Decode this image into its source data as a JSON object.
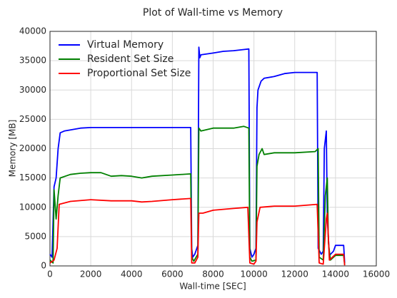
{
  "chart_data": {
    "type": "line",
    "title": "Plot of Wall-time vs Memory",
    "xlabel": "Wall-time [SEC]",
    "ylabel": "Memory [MB]",
    "xlim": [
      0,
      16000
    ],
    "xticks": [
      0,
      2000,
      4000,
      6000,
      8000,
      10000,
      12000,
      14000,
      16000
    ],
    "ylim": [
      0,
      40000
    ],
    "yticks": [
      0,
      5000,
      10000,
      15000,
      20000,
      25000,
      30000,
      35000,
      40000
    ],
    "grid": true,
    "legend": "upper left",
    "series": [
      {
        "name": "Virtual Memory",
        "color": "#0000ff",
        "x": [
          0,
          100,
          200,
          300,
          400,
          500,
          700,
          1000,
          1500,
          2000,
          3000,
          4000,
          5000,
          6000,
          6900,
          6950,
          7000,
          7100,
          7250,
          7300,
          7350,
          7400,
          8000,
          8500,
          9000,
          9500,
          9750,
          9800,
          9900,
          10000,
          10100,
          10150,
          10200,
          10350,
          10500,
          11000,
          11500,
          12000,
          12500,
          13100,
          13150,
          13300,
          13400,
          13450,
          13550,
          13600,
          13700,
          13900,
          14000,
          14400,
          14450
        ],
        "values": [
          2000,
          1500,
          13500,
          15000,
          20000,
          22700,
          23000,
          23200,
          23500,
          23600,
          23600,
          23600,
          23600,
          23600,
          23600,
          3000,
          1500,
          2000,
          3500,
          37300,
          35500,
          36000,
          36300,
          36600,
          36700,
          36900,
          37000,
          3000,
          1500,
          2000,
          3000,
          27000,
          30000,
          31500,
          32000,
          32300,
          32800,
          33000,
          33000,
          33000,
          3000,
          2000,
          2500,
          20000,
          23000,
          8000,
          1800,
          2500,
          3500,
          3500,
          500
        ]
      },
      {
        "name": "Resident Set Size",
        "color": "#008000",
        "x": [
          0,
          150,
          200,
          300,
          400,
          500,
          1000,
          1500,
          2000,
          2500,
          3000,
          3500,
          4000,
          4500,
          5000,
          6000,
          6900,
          6950,
          7050,
          7250,
          7300,
          7400,
          8000,
          8500,
          9000,
          9500,
          9750,
          9800,
          9900,
          10100,
          10150,
          10250,
          10400,
          10500,
          11000,
          12000,
          13000,
          13150,
          13200,
          13400,
          13500,
          13600,
          13650,
          13750,
          14000,
          14400,
          14450
        ],
        "values": [
          1000,
          500,
          13000,
          8000,
          12000,
          15000,
          15600,
          15800,
          15900,
          15900,
          15300,
          15400,
          15300,
          15000,
          15300,
          15500,
          15700,
          1500,
          800,
          2000,
          23500,
          23000,
          23500,
          23500,
          23500,
          23800,
          23500,
          1500,
          800,
          1000,
          17000,
          19000,
          20000,
          19000,
          19300,
          19300,
          19500,
          20000,
          1500,
          1000,
          12000,
          15000,
          4000,
          1000,
          1800,
          1800,
          200
        ]
      },
      {
        "name": "Proportional Set Size",
        "color": "#ff0000",
        "x": [
          0,
          200,
          350,
          450,
          1000,
          2000,
          3000,
          4000,
          4500,
          5000,
          6000,
          6900,
          6950,
          7100,
          7250,
          7300,
          7500,
          8000,
          9000,
          9700,
          9800,
          10000,
          10100,
          10150,
          10300,
          11000,
          12000,
          13100,
          13200,
          13400,
          13550,
          13600,
          13700,
          14000,
          14400,
          14450
        ],
        "values": [
          500,
          1000,
          3000,
          10500,
          11000,
          11300,
          11100,
          11100,
          10900,
          11000,
          11300,
          11500,
          500,
          500,
          1500,
          9000,
          9000,
          9500,
          9800,
          10000,
          500,
          300,
          800,
          7500,
          10000,
          10200,
          10200,
          10500,
          500,
          300,
          8000,
          9000,
          1000,
          2000,
          2000,
          100
        ]
      }
    ]
  }
}
